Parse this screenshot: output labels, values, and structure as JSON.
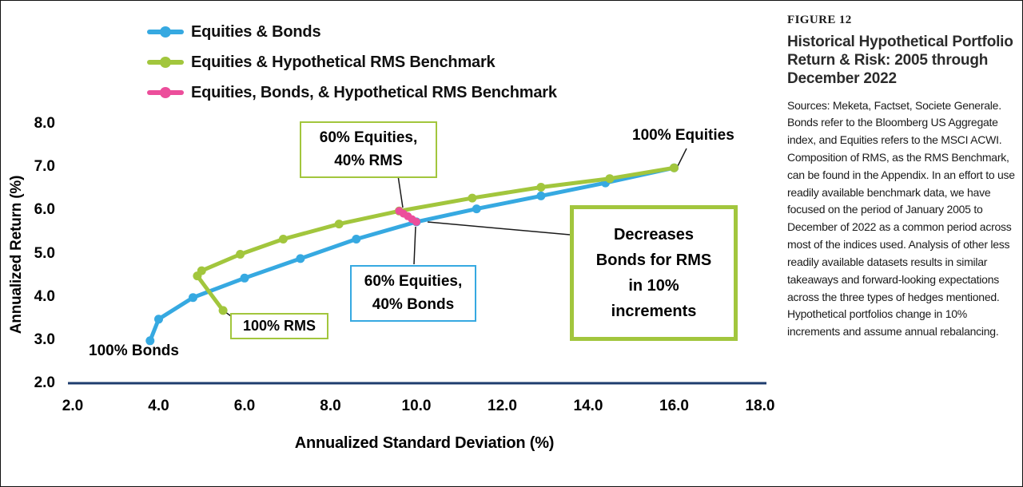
{
  "colors": {
    "blue": "#36A9E1",
    "green": "#A2C63D",
    "pink": "#EC4E9B",
    "axis": "#1E3C6E"
  },
  "legend": {
    "items": [
      {
        "label": "Equities & Bonds",
        "color": "#36A9E1"
      },
      {
        "label": "Equities & Hypothetical RMS Benchmark",
        "color": "#A2C63D"
      },
      {
        "label": "Equities, Bonds, & Hypothetical RMS Benchmark",
        "color": "#EC4E9B"
      }
    ]
  },
  "axes": {
    "x": {
      "title": "Annualized Standard Deviation (%)",
      "ticks": [
        "2.0",
        "4.0",
        "6.0",
        "8.0",
        "10.0",
        "12.0",
        "14.0",
        "16.0",
        "18.0"
      ]
    },
    "y": {
      "title": "Annualized Return (%)",
      "ticks": [
        "8.0",
        "7.0",
        "6.0",
        "5.0",
        "4.0",
        "3.0",
        "2.0"
      ]
    }
  },
  "chart_data": {
    "type": "line",
    "title": "Historical Hypothetical Portfolio Return & Risk: 2005 through December 2022",
    "xlabel": "Annualized Standard Deviation (%)",
    "ylabel": "Annualized Return (%)",
    "xlim": [
      2.0,
      18.0
    ],
    "ylim": [
      2.0,
      8.0
    ],
    "grid": false,
    "legend_position": "top-left",
    "series": [
      {
        "name": "Equities & Bonds",
        "color": "#36A9E1",
        "points": [
          [
            3.8,
            3.0
          ],
          [
            4.0,
            3.5
          ],
          [
            4.8,
            4.0
          ],
          [
            6.0,
            4.45
          ],
          [
            7.3,
            4.9
          ],
          [
            8.6,
            5.35
          ],
          [
            10.0,
            5.75
          ],
          [
            11.4,
            6.05
          ],
          [
            12.9,
            6.35
          ],
          [
            14.4,
            6.65
          ],
          [
            16.0,
            7.0
          ]
        ]
      },
      {
        "name": "Equities & Hypothetical RMS Benchmark",
        "color": "#A2C63D",
        "points": [
          [
            5.5,
            3.7
          ],
          [
            4.9,
            4.5
          ],
          [
            5.0,
            4.62
          ],
          [
            5.9,
            5.0
          ],
          [
            6.9,
            5.35
          ],
          [
            8.2,
            5.7
          ],
          [
            9.6,
            6.0
          ],
          [
            11.3,
            6.3
          ],
          [
            12.9,
            6.55
          ],
          [
            14.5,
            6.75
          ],
          [
            16.0,
            7.0
          ]
        ]
      },
      {
        "name": "Equities, Bonds, & Hypothetical RMS Benchmark",
        "color": "#EC4E9B",
        "points": [
          [
            10.0,
            5.75
          ],
          [
            9.9,
            5.81
          ],
          [
            9.8,
            5.88
          ],
          [
            9.7,
            5.94
          ],
          [
            9.6,
            6.0
          ]
        ]
      }
    ],
    "annotations": [
      "100% Bonds",
      "100% RMS",
      "60% Equities, 40% RMS",
      "60% Equities, 40% Bonds",
      "100% Equities",
      "Decreases Bonds for RMS in 10% increments"
    ]
  },
  "annotations": {
    "bonds_100": "100% Bonds",
    "equities_100": "100% Equities",
    "rms_100": "100% RMS",
    "eq60_rms40": "60% Equities,\n40% RMS",
    "eq60_bonds40": "60% Equities,\n40% Bonds",
    "decreases": "Decreases\nBonds for RMS\nin 10%\nincrements"
  },
  "sidebar": {
    "figure_label": "FIGURE 12",
    "title": "Historical Hypothetical Portfolio Return & Risk: 2005 through December 2022",
    "body": "Sources: Meketa, Factset, Societe Generale. Bonds refer to the Bloomberg US Aggregate index, and Equities refers to the MSCI ACWI. Composition of RMS, as the RMS Benchmark, can be found in the Appendix. In an effort to use readily available benchmark data, we have focused on the period of January 2005 to December of 2022 as a common period across most of the indices used. Analysis of other less readily available datasets results in similar takeaways and forward-looking expectations across the three types of hedges mentioned. Hypothetical portfolios change in 10% increments and assume annual rebalancing."
  }
}
